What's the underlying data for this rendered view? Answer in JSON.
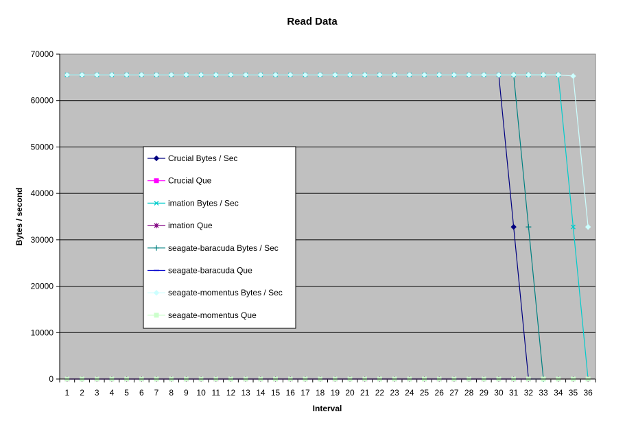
{
  "chart_data": {
    "type": "line",
    "title": "Read Data",
    "xlabel": "Interval",
    "ylabel": "Bytes / second",
    "ylim": [
      0,
      70000
    ],
    "yticks": [
      0,
      10000,
      20000,
      30000,
      40000,
      50000,
      60000,
      70000
    ],
    "categories": [
      1,
      2,
      3,
      4,
      5,
      6,
      7,
      8,
      9,
      10,
      11,
      12,
      13,
      14,
      15,
      16,
      17,
      18,
      19,
      20,
      21,
      22,
      23,
      24,
      25,
      26,
      27,
      28,
      29,
      30,
      31,
      32,
      33,
      34,
      35,
      36
    ],
    "grid": "horizontal",
    "plot_background": "#c0c0c0",
    "legend": "inside-left",
    "series": [
      {
        "name": "Crucial Bytes / Sec",
        "color": "#000080",
        "marker": "diamond",
        "values": [
          65536,
          65536,
          65536,
          65536,
          65536,
          65536,
          65536,
          65536,
          65536,
          65536,
          65536,
          65536,
          65536,
          65536,
          65536,
          65536,
          65536,
          65536,
          65536,
          65536,
          65536,
          65536,
          65536,
          65536,
          65536,
          65536,
          65536,
          65536,
          65536,
          65536,
          32768,
          0,
          null,
          null,
          null,
          null
        ]
      },
      {
        "name": "Crucial Que",
        "color": "#ff00ff",
        "marker": "square",
        "values": [
          0,
          0,
          0,
          0,
          0,
          0,
          0,
          0,
          0,
          0,
          0,
          0,
          0,
          0,
          0,
          0,
          0,
          0,
          0,
          0,
          0,
          0,
          0,
          0,
          0,
          0,
          0,
          0,
          0,
          0,
          0,
          0,
          null,
          null,
          null,
          null
        ]
      },
      {
        "name": "imation Bytes / Sec",
        "color": "#00cccc",
        "marker": "x",
        "values": [
          65536,
          65536,
          65536,
          65536,
          65536,
          65536,
          65536,
          65536,
          65536,
          65536,
          65536,
          65536,
          65536,
          65536,
          65536,
          65536,
          65536,
          65536,
          65536,
          65536,
          65536,
          65536,
          65536,
          65536,
          65536,
          65536,
          65536,
          65536,
          65536,
          65536,
          65536,
          65536,
          65536,
          65536,
          32768,
          0
        ]
      },
      {
        "name": "imation Que",
        "color": "#800080",
        "marker": "star",
        "values": [
          0,
          0,
          0,
          0,
          0,
          0,
          0,
          0,
          0,
          0,
          0,
          0,
          0,
          0,
          0,
          0,
          0,
          0,
          0,
          0,
          0,
          0,
          0,
          0,
          0,
          0,
          0,
          0,
          0,
          0,
          0,
          0,
          0,
          0,
          0,
          0
        ]
      },
      {
        "name": "seagate-baracuda Bytes / Sec",
        "color": "#008080",
        "marker": "plus",
        "values": [
          65536,
          65536,
          65536,
          65536,
          65536,
          65536,
          65536,
          65536,
          65536,
          65536,
          65536,
          65536,
          65536,
          65536,
          65536,
          65536,
          65536,
          65536,
          65536,
          65536,
          65536,
          65536,
          65536,
          65536,
          65536,
          65536,
          65536,
          65536,
          65536,
          65536,
          65536,
          32768,
          0,
          null,
          null,
          null
        ]
      },
      {
        "name": "seagate-baracuda Que",
        "color": "#0000cc",
        "marker": "dash",
        "values": [
          0,
          0,
          0,
          0,
          0,
          0,
          0,
          0,
          0,
          0,
          0,
          0,
          0,
          0,
          0,
          0,
          0,
          0,
          0,
          0,
          0,
          0,
          0,
          0,
          0,
          0,
          0,
          0,
          0,
          0,
          0,
          0,
          0,
          null,
          null,
          null
        ]
      },
      {
        "name": "seagate-momentus Bytes / Sec",
        "color": "#ccffff",
        "marker": "diamond",
        "values": [
          65536,
          65536,
          65536,
          65536,
          65536,
          65536,
          65536,
          65536,
          65536,
          65536,
          65536,
          65536,
          65536,
          65536,
          65536,
          65536,
          65536,
          65536,
          65536,
          65536,
          65536,
          65536,
          65536,
          65536,
          65536,
          65536,
          65536,
          65536,
          65536,
          65536,
          65536,
          65536,
          65536,
          65536,
          65280,
          32768
        ]
      },
      {
        "name": "seagate-momentus Que",
        "color": "#ccffcc",
        "marker": "square",
        "values": [
          0,
          0,
          0,
          0,
          0,
          0,
          0,
          0,
          0,
          0,
          0,
          0,
          0,
          0,
          0,
          0,
          0,
          0,
          0,
          0,
          0,
          0,
          0,
          0,
          0,
          0,
          0,
          0,
          0,
          0,
          0,
          0,
          0,
          0,
          0,
          0
        ]
      }
    ]
  }
}
